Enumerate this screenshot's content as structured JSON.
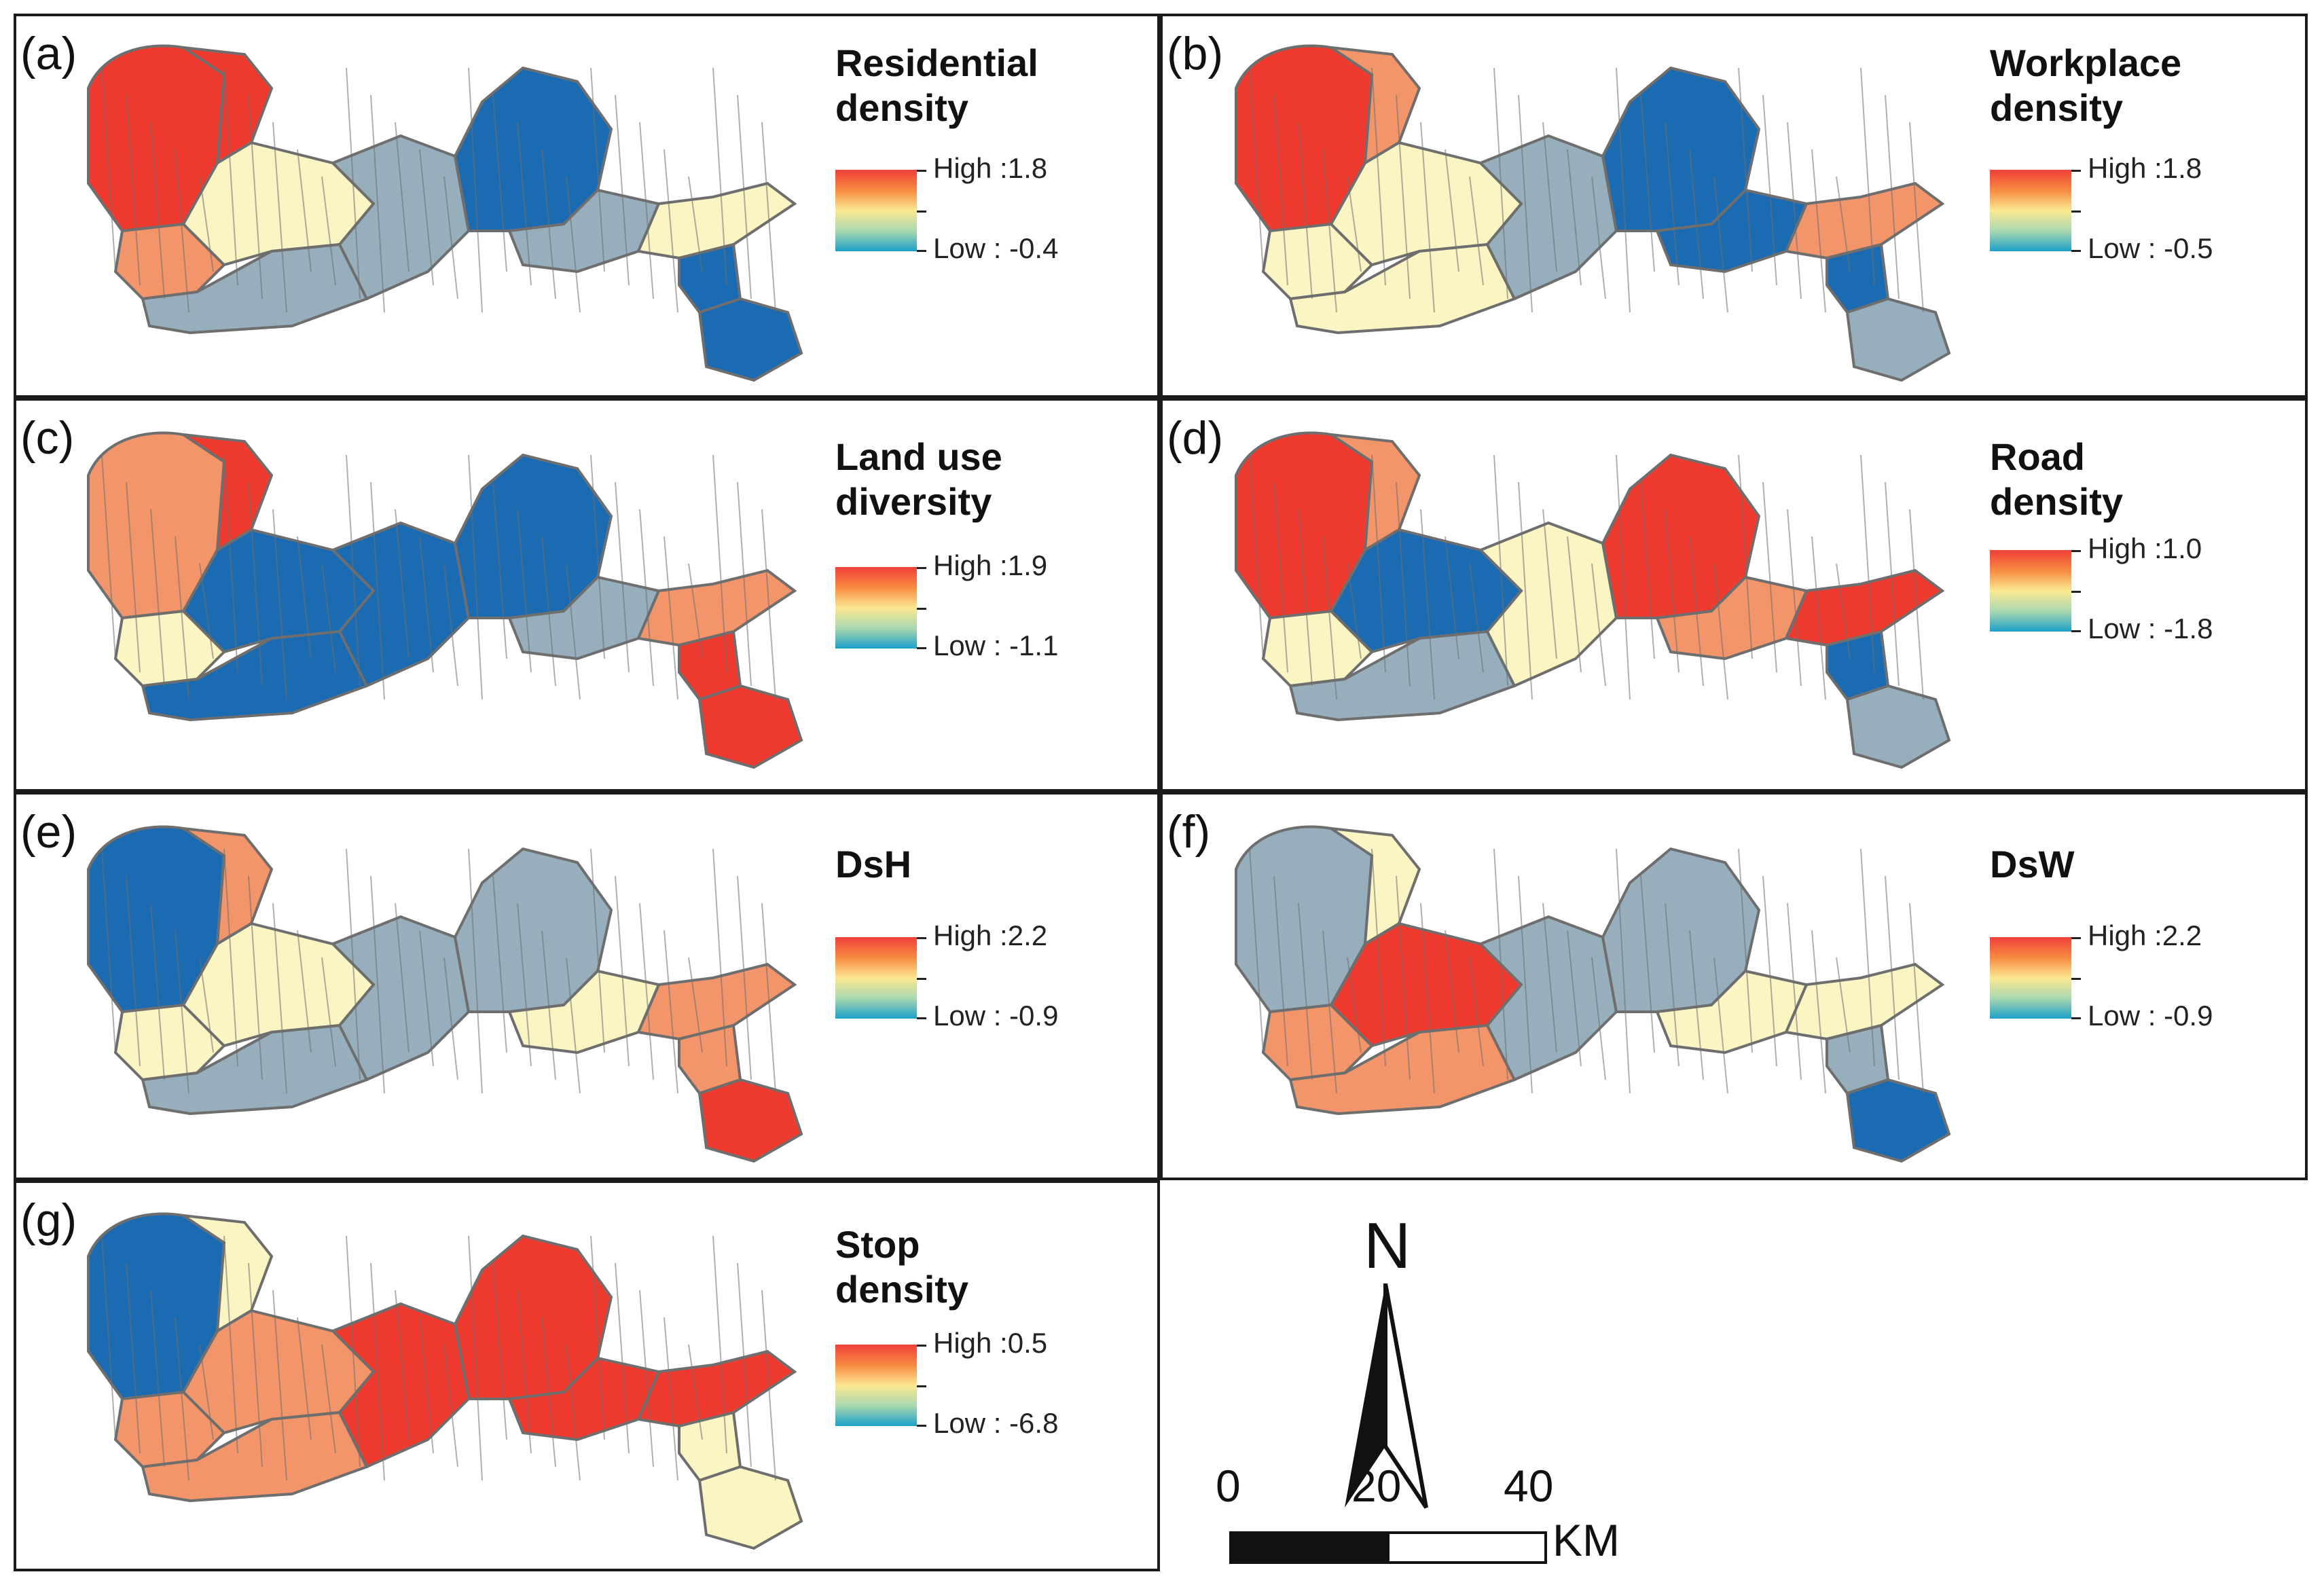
{
  "colors": {
    "high": "#ef3b2f",
    "mid_high": "#f2956b",
    "neutral": "#fbf5c4",
    "mid_low": "#97afbd",
    "low": "#1b6bb3",
    "outline": "#6e6e6e"
  },
  "panels": [
    {
      "id": "a",
      "label": "(a)",
      "title": "Residential\ndensity",
      "high": "High :1.8",
      "low": "Low : -0.4",
      "pattern": [
        "high",
        "high",
        "mid_high",
        "neutral",
        "mid_low",
        "mid_low",
        "low",
        "mid_low",
        "neutral",
        "low",
        "low"
      ]
    },
    {
      "id": "b",
      "label": "(b)",
      "title": "Workplace\ndensity",
      "high": "High :1.8",
      "low": "Low : -0.5",
      "pattern": [
        "high",
        "mid_high",
        "neutral",
        "neutral",
        "neutral",
        "mid_low",
        "low",
        "low",
        "mid_high",
        "low",
        "mid_low"
      ]
    },
    {
      "id": "c",
      "label": "(c)",
      "title": "Land use\ndiversity",
      "high": "High :1.9",
      "low": "Low : -1.1",
      "pattern": [
        "mid_high",
        "high",
        "neutral",
        "low",
        "low",
        "low",
        "low",
        "mid_low",
        "mid_high",
        "high",
        "high"
      ]
    },
    {
      "id": "d",
      "label": "(d)",
      "title": "Road\ndensity",
      "high": "High :1.0",
      "low": "Low : -1.8",
      "pattern": [
        "high",
        "mid_high",
        "neutral",
        "low",
        "mid_low",
        "neutral",
        "high",
        "mid_high",
        "high",
        "low",
        "mid_low"
      ]
    },
    {
      "id": "e",
      "label": "(e)",
      "title": "DsH",
      "high": "High :2.2",
      "low": "Low : -0.9",
      "pattern": [
        "low",
        "mid_high",
        "neutral",
        "neutral",
        "mid_low",
        "mid_low",
        "mid_low",
        "neutral",
        "mid_high",
        "mid_high",
        "high"
      ]
    },
    {
      "id": "f",
      "label": "(f)",
      "title": "DsW",
      "high": "High :2.2",
      "low": "Low : -0.9",
      "pattern": [
        "mid_low",
        "neutral",
        "mid_high",
        "high",
        "mid_high",
        "mid_low",
        "mid_low",
        "neutral",
        "neutral",
        "mid_low",
        "low"
      ]
    },
    {
      "id": "g",
      "label": "(g)",
      "title": "Stop\ndensity",
      "high": "High :0.5",
      "low": "Low : -6.8",
      "pattern": [
        "low",
        "neutral",
        "mid_high",
        "mid_high",
        "mid_high",
        "high",
        "high",
        "high",
        "high",
        "neutral",
        "neutral"
      ]
    }
  ],
  "compass": {
    "label": "N"
  },
  "scale": {
    "ticks": [
      "0",
      "20",
      "40"
    ],
    "unit": "KM"
  }
}
